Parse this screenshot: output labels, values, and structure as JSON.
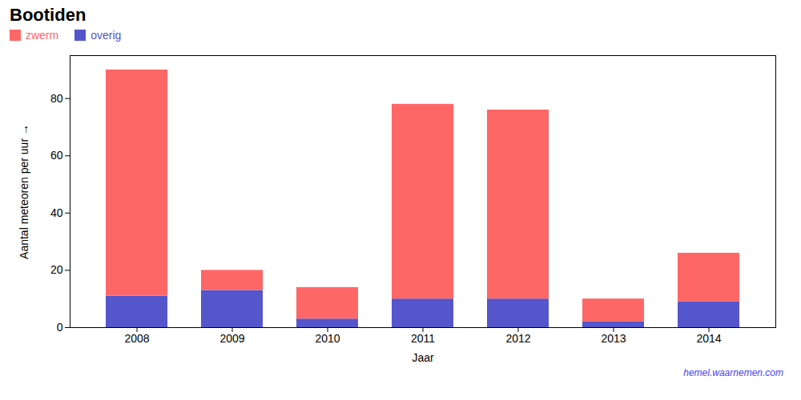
{
  "chart_data": {
    "type": "bar",
    "title": "Bootiden",
    "stacked": true,
    "xlabel": "Jaar",
    "ylabel": "Aantal meteoren per uur",
    "categories": [
      "2008",
      "2009",
      "2010",
      "2011",
      "2012",
      "2013",
      "2014"
    ],
    "series": [
      {
        "name": "overig",
        "color": "#5555CC",
        "values": [
          11,
          13,
          3,
          10,
          10,
          2,
          9
        ]
      },
      {
        "name": "zwerm",
        "color": "#FF6666",
        "values": [
          79,
          7,
          11,
          68,
          66,
          8,
          17
        ]
      }
    ],
    "ylim": [
      0,
      95
    ],
    "yticks": [
      0,
      20,
      40,
      60,
      80
    ],
    "grid": false,
    "legend": "upper left",
    "annotations": [
      {
        "text": "hemel.waarnemen.com",
        "color": "#4444FF"
      }
    ]
  }
}
